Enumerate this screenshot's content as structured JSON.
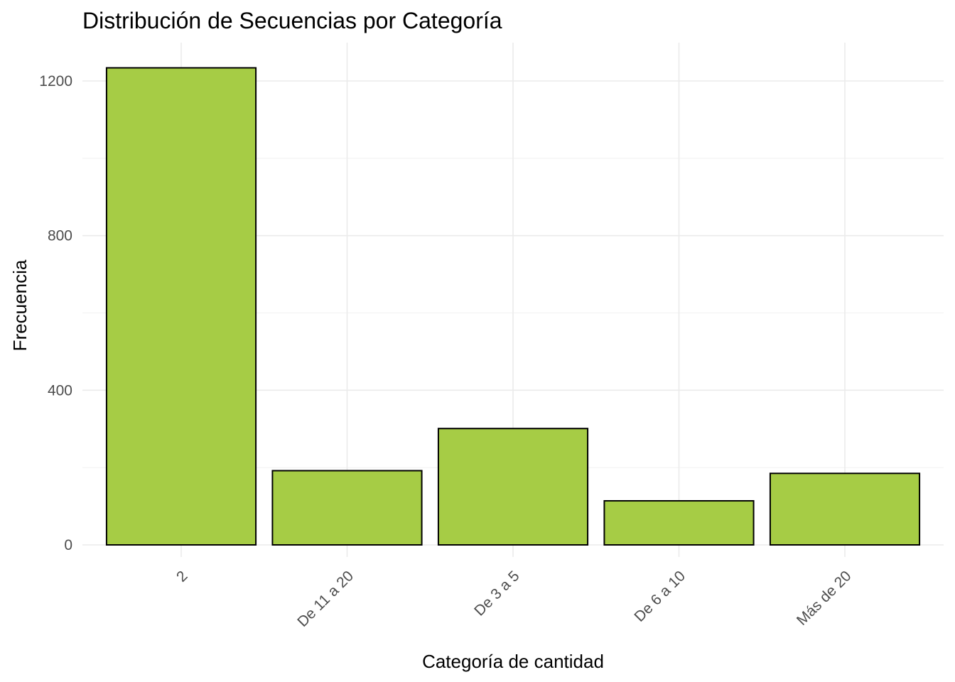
{
  "chart_data": {
    "type": "bar",
    "title": "Distribución de Secuencias por Categoría",
    "xlabel": "Categoría de cantidad",
    "ylabel": "Frecuencia",
    "categories": [
      "2",
      "De 11 a 20",
      "De 3 a 5",
      "De 6 a 10",
      "Más de 20"
    ],
    "values": [
      1234,
      192,
      301,
      114,
      185
    ],
    "ylim": [
      0,
      1290
    ],
    "yticks": [
      0,
      400,
      800,
      1200
    ],
    "yticks_minor": [
      200,
      600,
      1000
    ],
    "grid": true,
    "bar_color": "#a6cc45",
    "bar_edge_color": "#000000"
  }
}
